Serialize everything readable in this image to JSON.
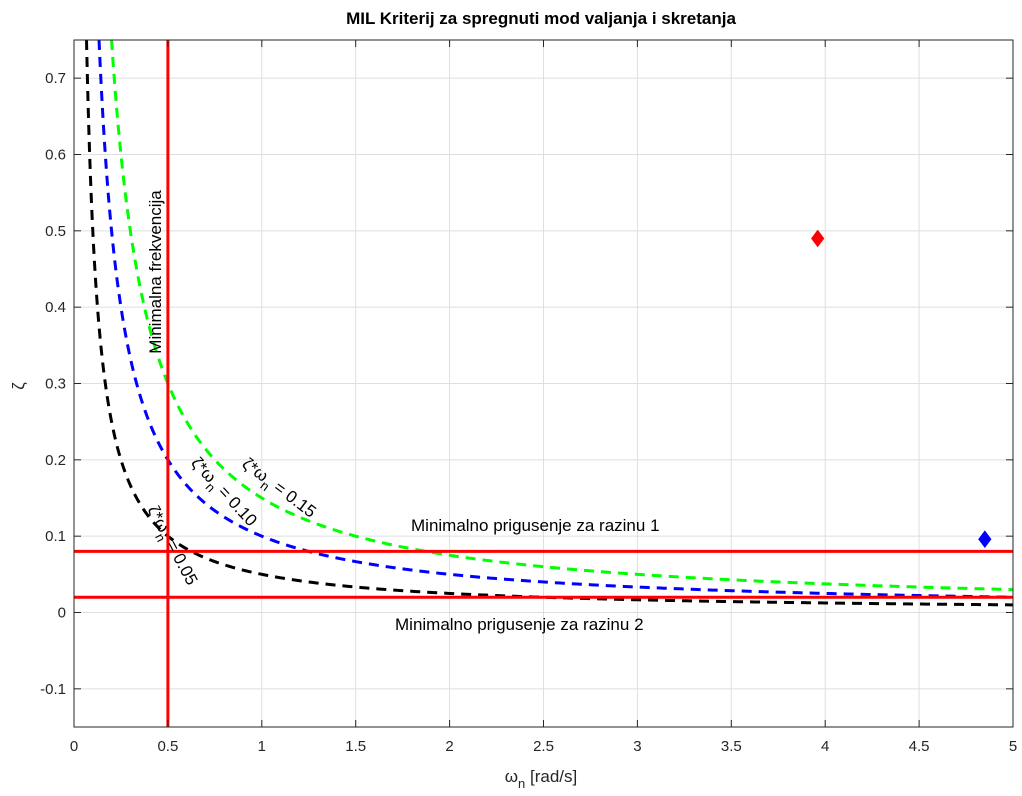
{
  "chart_data": {
    "type": "line",
    "title": "MIL Kriterij za spregnuti mod valjanja i skretanja",
    "xlabel": {
      "symbol": "ω",
      "sub": "n",
      "unit": " [rad/s]"
    },
    "ylabel": "ζ",
    "xlim": [
      0,
      5
    ],
    "ylim": [
      -0.15,
      0.75
    ],
    "xticks": [
      0,
      0.5,
      1,
      1.5,
      2,
      2.5,
      3,
      3.5,
      4,
      4.5,
      5
    ],
    "xtick_labels": [
      "0",
      "0.5",
      "1",
      "1.5",
      "2",
      "2.5",
      "3",
      "3.5",
      "4",
      "4.5",
      "5"
    ],
    "yticks": [
      -0.1,
      0,
      0.1,
      0.2,
      0.3,
      0.4,
      0.5,
      0.6,
      0.7
    ],
    "ytick_labels": [
      "-0.1",
      "0",
      "0.1",
      "0.2",
      "0.3",
      "0.4",
      "0.5",
      "0.6",
      "0.7"
    ],
    "grid": true,
    "series": [
      {
        "name": "ζ*ω_n = 0.05",
        "label_parts": [
          "ζ*ω",
          "n",
          " = 0.05"
        ],
        "product": 0.05,
        "color": "#000000",
        "style": "dashed"
      },
      {
        "name": "ζ*ω_n = 0.10",
        "label_parts": [
          "ζ*ω",
          "n",
          " = 0.10"
        ],
        "product": 0.1,
        "color": "#0000ff",
        "style": "dashed"
      },
      {
        "name": "ζ*ω_n = 0.15",
        "label_parts": [
          "ζ*ω",
          "n",
          " = 0.15"
        ],
        "product": 0.15,
        "color": "#00ff00",
        "style": "dashed"
      }
    ],
    "limit_lines": [
      {
        "orientation": "vertical",
        "value": 0.5,
        "color": "#ff0000",
        "label": "Minimalna frekvencija"
      },
      {
        "orientation": "horizontal",
        "value": 0.08,
        "color": "#ff0000",
        "label": "Minimalno prigusenje za razinu 1"
      },
      {
        "orientation": "horizontal",
        "value": 0.02,
        "color": "#ff0000",
        "label": "Minimalno prigusenje za razinu 2"
      }
    ],
    "points": [
      {
        "x": 3.96,
        "y": 0.49,
        "color": "#ff0000",
        "marker": "diamond"
      },
      {
        "x": 4.85,
        "y": 0.096,
        "color": "#0000ff",
        "marker": "diamond"
      }
    ]
  }
}
